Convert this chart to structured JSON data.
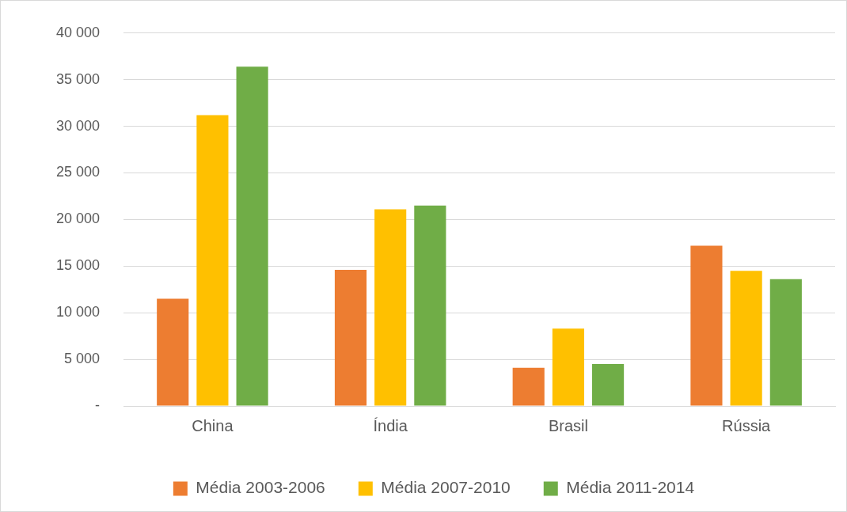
{
  "chart_data": {
    "type": "bar",
    "categories": [
      "China",
      "Índia",
      "Brasil",
      "Rússia"
    ],
    "series": [
      {
        "name": "Média 2003-2006",
        "color": "#ed7d31",
        "values": [
          11500,
          14600,
          4100,
          17200
        ]
      },
      {
        "name": "Média 2007-2010",
        "color": "#ffc000",
        "values": [
          31200,
          21100,
          8300,
          14500
        ]
      },
      {
        "name": "Média 2011-2014",
        "color": "#70ad47",
        "values": [
          36400,
          21500,
          4500,
          13600
        ]
      }
    ],
    "ylim": [
      0,
      40000
    ],
    "yticks": [
      {
        "value": 0,
        "label": "-"
      },
      {
        "value": 5000,
        "label": "5 000"
      },
      {
        "value": 10000,
        "label": "10 000"
      },
      {
        "value": 15000,
        "label": "15 000"
      },
      {
        "value": 20000,
        "label": "20 000"
      },
      {
        "value": 25000,
        "label": "25 000"
      },
      {
        "value": 30000,
        "label": "30 000"
      },
      {
        "value": 35000,
        "label": "35 000"
      },
      {
        "value": 40000,
        "label": "40 000"
      }
    ],
    "grid": "y",
    "legend": "bottom"
  }
}
